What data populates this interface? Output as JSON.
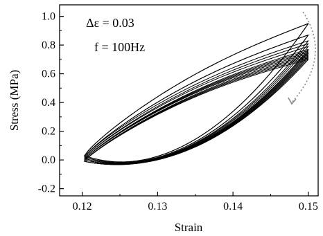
{
  "chart_data": {
    "type": "line",
    "title": "",
    "xlabel": "Strain",
    "ylabel": "Stress (MPa)",
    "xlim": [
      0.117,
      0.1513
    ],
    "ylim": [
      -0.25,
      1.08
    ],
    "xticks": [
      "0.12",
      "0.13",
      "0.14",
      "0.15"
    ],
    "xtick_values": [
      0.12,
      0.13,
      0.14,
      0.15
    ],
    "yticks": [
      "-0.2",
      "0.0",
      "0.2",
      "0.4",
      "0.6",
      "0.8",
      "1.0"
    ],
    "ytick_values": [
      -0.2,
      0.0,
      0.2,
      0.4,
      0.6,
      0.8,
      1.0
    ],
    "grid": false,
    "legend": "none",
    "annotations": [
      {
        "text": "Δε = 0.03"
      },
      {
        "text": "f = 100Hz"
      }
    ],
    "arrow": {
      "style": "dotted",
      "direction": "downward-curved",
      "meaning": "loop peak decreasing with cycling",
      "color": "#888888"
    },
    "loop_description": "hysteresis loops of a stress-strain cycle; upper peak decreases over cycles",
    "loops": [
      {
        "peak_stress": 0.95,
        "min_stress": -0.05,
        "lower_end_stress": 0.03
      },
      {
        "peak_stress": 0.87,
        "min_stress": -0.05,
        "lower_end_stress": 0.02
      },
      {
        "peak_stress": 0.83,
        "min_stress": -0.05,
        "lower_end_stress": 0.02
      },
      {
        "peak_stress": 0.81,
        "min_stress": -0.05,
        "lower_end_stress": 0.01
      },
      {
        "peak_stress": 0.79,
        "min_stress": -0.05,
        "lower_end_stress": 0.01
      },
      {
        "peak_stress": 0.77,
        "min_stress": -0.05,
        "lower_end_stress": 0.0
      },
      {
        "peak_stress": 0.76,
        "min_stress": -0.05,
        "lower_end_stress": 0.0
      },
      {
        "peak_stress": 0.75,
        "min_stress": -0.05,
        "lower_end_stress": 0.0
      },
      {
        "peak_stress": 0.74,
        "min_stress": -0.05,
        "lower_end_stress": 0.0
      },
      {
        "peak_stress": 0.73,
        "min_stress": -0.05,
        "lower_end_stress": -0.01
      },
      {
        "peak_stress": 0.72,
        "min_stress": -0.05,
        "lower_end_stress": -0.01
      },
      {
        "peak_stress": 0.71,
        "min_stress": -0.05,
        "lower_end_stress": -0.01
      },
      {
        "peak_stress": 0.7,
        "min_stress": -0.05,
        "lower_end_stress": -0.01
      }
    ],
    "strain_min": 0.1203,
    "strain_max": 0.15,
    "colors": {
      "line": "#000000",
      "arrow": "#888888"
    }
  }
}
